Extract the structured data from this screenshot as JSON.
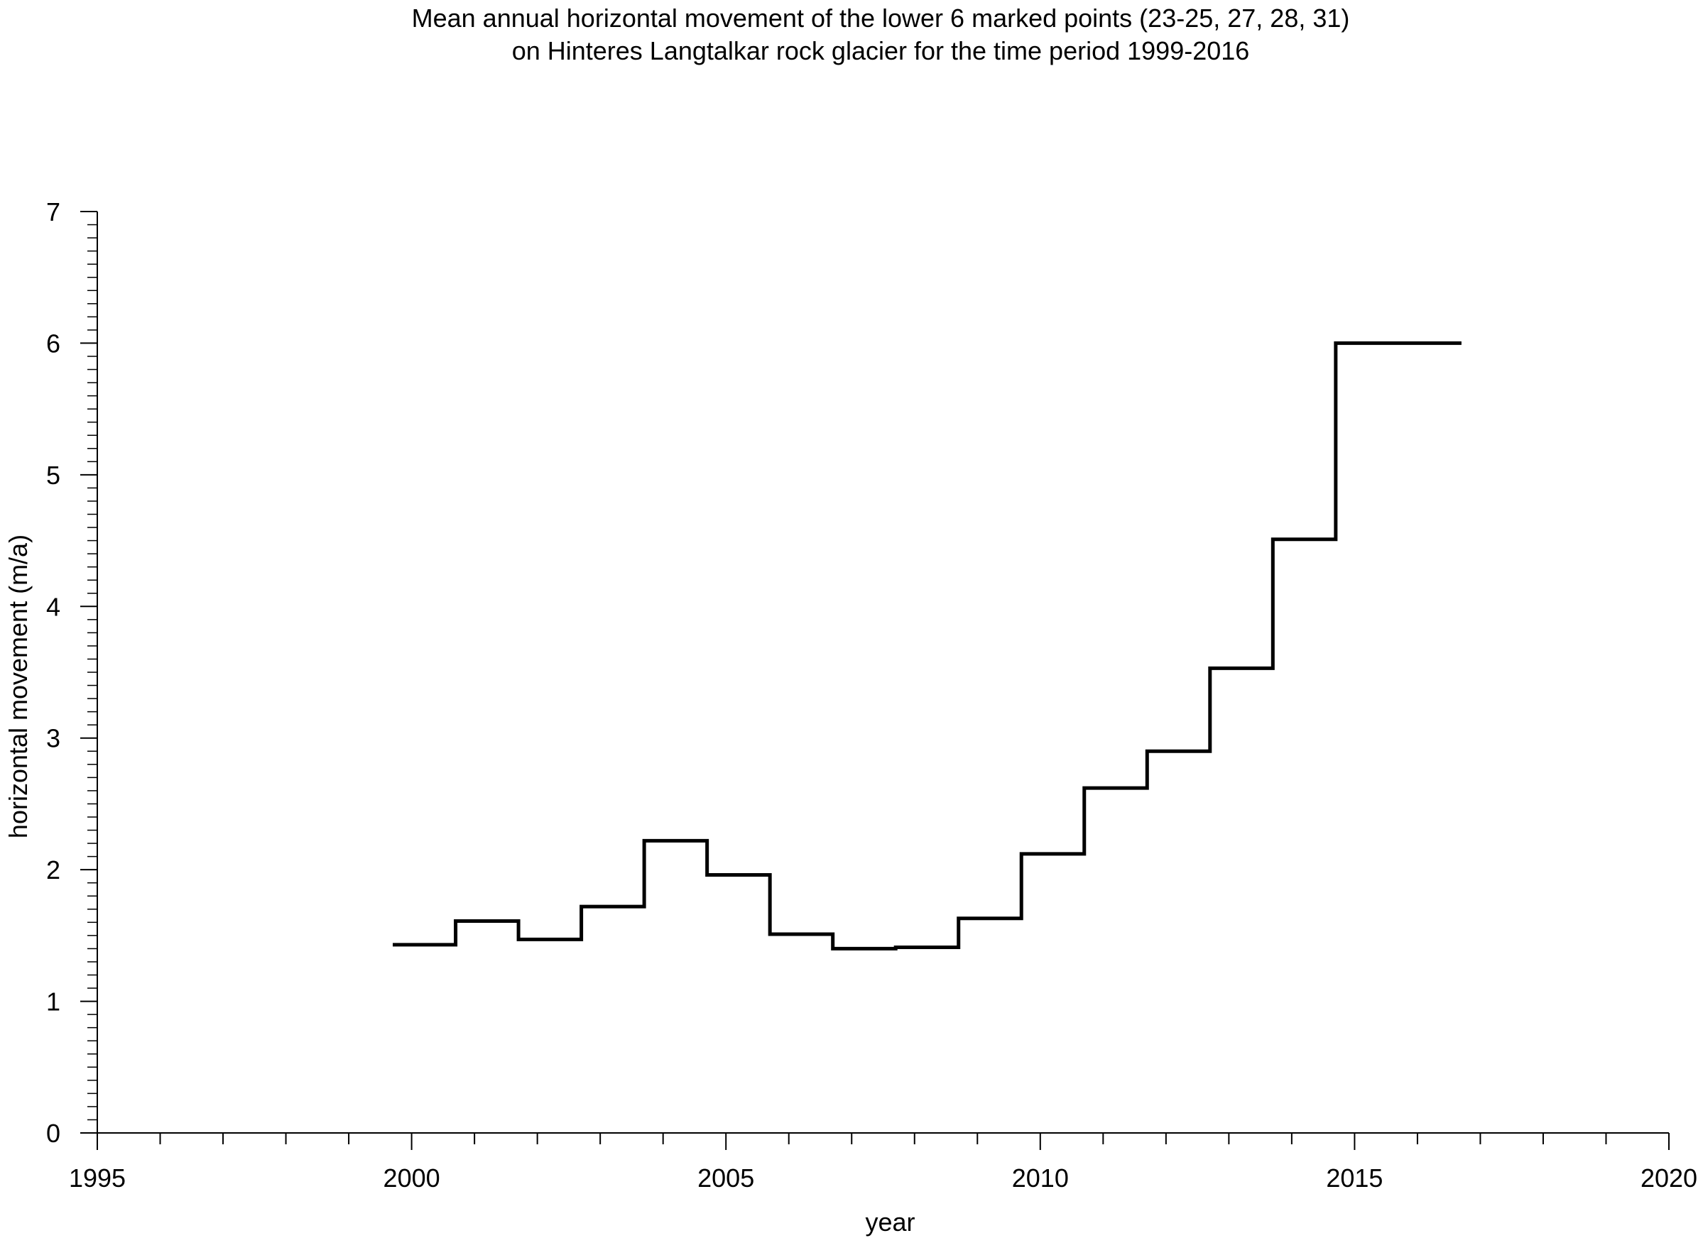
{
  "chart_data": {
    "type": "line",
    "step": true,
    "title_lines": [
      "Mean annual horizontal movement of the lower 6 marked points (23-25, 27, 28, 31)",
      "on Hinteres Langtalkar rock glacier for the time period 1999-2016"
    ],
    "xlabel": "year",
    "ylabel": "horizontal movement (m/a)",
    "xlim": [
      1995,
      2020
    ],
    "ylim": [
      0,
      7
    ],
    "x_ticks": [
      1995,
      2000,
      2005,
      2010,
      2015,
      2020
    ],
    "y_ticks": [
      0,
      1,
      2,
      3,
      4,
      5,
      6,
      7
    ],
    "x_minor_step": 1,
    "y_minor_step": 0.1,
    "grid": false,
    "legend": "none",
    "line_color": "#000000",
    "series": [
      {
        "segments": [
          {
            "x0": 1999.7,
            "x1": 2000.7,
            "y": 1.43
          },
          {
            "x0": 2000.7,
            "x1": 2001.7,
            "y": 1.61
          },
          {
            "x0": 2001.7,
            "x1": 2002.7,
            "y": 1.47
          },
          {
            "x0": 2002.7,
            "x1": 2003.7,
            "y": 1.72
          },
          {
            "x0": 2003.7,
            "x1": 2004.7,
            "y": 2.22
          },
          {
            "x0": 2004.7,
            "x1": 2005.7,
            "y": 1.96
          },
          {
            "x0": 2005.7,
            "x1": 2006.7,
            "y": 1.51
          },
          {
            "x0": 2006.7,
            "x1": 2007.7,
            "y": 1.4
          },
          {
            "x0": 2007.7,
            "x1": 2008.7,
            "y": 1.41
          },
          {
            "x0": 2008.7,
            "x1": 2009.7,
            "y": 1.63
          },
          {
            "x0": 2009.7,
            "x1": 2010.7,
            "y": 2.12
          },
          {
            "x0": 2010.7,
            "x1": 2011.7,
            "y": 2.62
          },
          {
            "x0": 2011.7,
            "x1": 2012.7,
            "y": 2.9
          },
          {
            "x0": 2012.7,
            "x1": 2013.7,
            "y": 3.53
          },
          {
            "x0": 2013.7,
            "x1": 2014.7,
            "y": 4.51
          },
          {
            "x0": 2014.7,
            "x1": 2016.7,
            "y": 6.0
          }
        ]
      }
    ]
  }
}
